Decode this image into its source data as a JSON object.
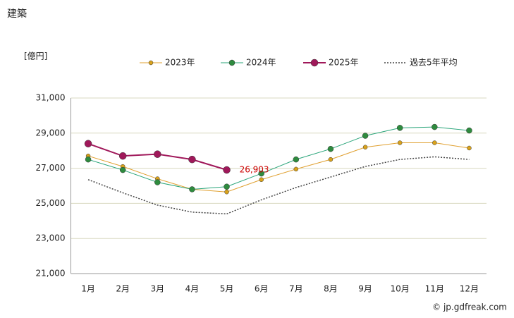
{
  "chart_data": {
    "type": "line",
    "title": "建築",
    "ylabel": "[億円]",
    "credit": "© jp.gdfreak.com",
    "categories": [
      "1月",
      "2月",
      "3月",
      "4月",
      "5月",
      "6月",
      "7月",
      "8月",
      "9月",
      "10月",
      "11月",
      "12月"
    ],
    "series": [
      {
        "name": "2023年",
        "color": "#d9a21b",
        "line_color": "#e0a030",
        "values": [
          27700,
          27100,
          26400,
          25800,
          25650,
          26350,
          26950,
          27500,
          28200,
          28450,
          28450,
          28150
        ]
      },
      {
        "name": "2024年",
        "color": "#2e8b3e",
        "line_color": "#2aa57a",
        "values": [
          27500,
          26900,
          26200,
          25800,
          25950,
          26700,
          27500,
          28100,
          28850,
          29300,
          29350,
          29150
        ]
      },
      {
        "name": "2025年",
        "color": "#a0185a",
        "line_color": "#a0185a",
        "values": [
          28400,
          27700,
          27800,
          27500,
          26903,
          null,
          null,
          null,
          null,
          null,
          null,
          null
        ],
        "value_labels": [
          null,
          null,
          null,
          null,
          "26,903",
          null,
          null,
          null,
          null,
          null,
          null,
          null
        ],
        "value_label_color": "#cc0000"
      },
      {
        "name": "過去5年平均",
        "color": "#444444",
        "line_color": "#444444",
        "line_style": "dotted",
        "values": [
          26350,
          25600,
          24900,
          24500,
          24400,
          25200,
          25900,
          26500,
          27100,
          27500,
          27650,
          27500
        ]
      }
    ],
    "ylim": [
      21000,
      31000
    ],
    "yticks": [
      {
        "value": 21000,
        "label": "21,000"
      },
      {
        "value": 23000,
        "label": "23,000"
      },
      {
        "value": 25000,
        "label": "25,000"
      },
      {
        "value": 27000,
        "label": "27,000"
      },
      {
        "value": 29000,
        "label": "29,000"
      },
      {
        "value": 31000,
        "label": "31,000"
      }
    ],
    "grid": true,
    "legend": "top"
  }
}
